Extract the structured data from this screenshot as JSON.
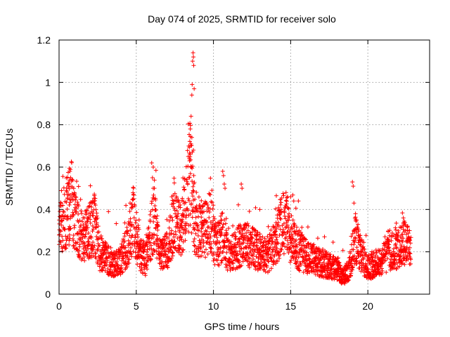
{
  "chart_data": {
    "type": "scatter",
    "title": "Day 074 of 2025, SRMTID for receiver solo",
    "xlabel": "GPS time / hours",
    "ylabel": "SRMTID / TECUs",
    "xlim": [
      0,
      24
    ],
    "ylim": [
      0,
      1.2
    ],
    "xticks": [
      0,
      5,
      10,
      15,
      20
    ],
    "yticks": [
      0,
      0.2,
      0.4,
      0.6,
      0.8,
      1,
      1.2
    ],
    "xtick_labels": [
      "0",
      "5",
      "10",
      "15",
      "20"
    ],
    "ytick_labels": [
      "0",
      "0.2",
      "0.4",
      "0.6",
      "0.8",
      "1",
      "1.2"
    ],
    "grid": true,
    "marker": "+",
    "color": "#ff0000",
    "series": [
      {
        "name": "solo",
        "trend": [
          [
            0.0,
            0.33
          ],
          [
            0.3,
            0.37
          ],
          [
            0.6,
            0.4
          ],
          [
            0.8,
            0.44
          ],
          [
            1.0,
            0.33
          ],
          [
            1.5,
            0.26
          ],
          [
            2.0,
            0.3
          ],
          [
            2.3,
            0.33
          ],
          [
            2.6,
            0.2
          ],
          [
            3.0,
            0.17
          ],
          [
            3.5,
            0.15
          ],
          [
            4.0,
            0.16
          ],
          [
            4.5,
            0.24
          ],
          [
            4.8,
            0.36
          ],
          [
            5.2,
            0.2
          ],
          [
            5.6,
            0.16
          ],
          [
            6.0,
            0.3
          ],
          [
            6.2,
            0.38
          ],
          [
            6.5,
            0.18
          ],
          [
            7.0,
            0.2
          ],
          [
            7.4,
            0.34
          ],
          [
            7.8,
            0.3
          ],
          [
            8.2,
            0.42
          ],
          [
            8.5,
            0.58
          ],
          [
            8.8,
            0.34
          ],
          [
            9.3,
            0.3
          ],
          [
            9.8,
            0.34
          ],
          [
            10.2,
            0.22
          ],
          [
            10.6,
            0.28
          ],
          [
            11.0,
            0.18
          ],
          [
            11.5,
            0.22
          ],
          [
            12.0,
            0.24
          ],
          [
            12.5,
            0.22
          ],
          [
            13.0,
            0.2
          ],
          [
            13.5,
            0.18
          ],
          [
            14.0,
            0.25
          ],
          [
            14.5,
            0.34
          ],
          [
            14.8,
            0.3
          ],
          [
            15.2,
            0.24
          ],
          [
            15.6,
            0.2
          ],
          [
            16.0,
            0.18
          ],
          [
            16.5,
            0.16
          ],
          [
            17.0,
            0.15
          ],
          [
            17.5,
            0.13
          ],
          [
            18.0,
            0.12
          ],
          [
            18.4,
            0.08
          ],
          [
            18.8,
            0.12
          ],
          [
            19.2,
            0.26
          ],
          [
            19.6,
            0.18
          ],
          [
            20.0,
            0.12
          ],
          [
            20.4,
            0.14
          ],
          [
            20.8,
            0.16
          ],
          [
            21.2,
            0.18
          ],
          [
            21.6,
            0.2
          ],
          [
            22.0,
            0.22
          ],
          [
            22.4,
            0.24
          ],
          [
            22.8,
            0.2
          ]
        ],
        "spikes": [
          [
            0.7,
            0.58
          ],
          [
            0.75,
            0.55
          ],
          [
            0.65,
            0.52
          ],
          [
            0.55,
            0.45
          ],
          [
            2.0,
            0.43
          ],
          [
            3.2,
            0.39
          ],
          [
            4.6,
            0.43
          ],
          [
            4.7,
            0.41
          ],
          [
            6.0,
            0.62
          ],
          [
            6.1,
            0.6
          ],
          [
            6.05,
            0.55
          ],
          [
            6.1,
            0.5
          ],
          [
            6.15,
            0.45
          ],
          [
            7.3,
            0.46
          ],
          [
            8.4,
            0.7
          ],
          [
            8.5,
            0.78
          ],
          [
            8.55,
            0.84
          ],
          [
            8.6,
            0.94
          ],
          [
            8.62,
            0.99
          ],
          [
            8.65,
            1.1
          ],
          [
            8.68,
            1.14
          ],
          [
            8.7,
            1.12
          ],
          [
            8.72,
            1.08
          ],
          [
            8.75,
            0.97
          ],
          [
            8.45,
            0.63
          ],
          [
            8.5,
            0.66
          ],
          [
            8.55,
            0.6
          ],
          [
            8.6,
            0.74
          ],
          [
            8.7,
            0.68
          ],
          [
            9.9,
            0.49
          ],
          [
            10.6,
            0.58
          ],
          [
            10.65,
            0.56
          ],
          [
            10.7,
            0.52
          ],
          [
            10.75,
            0.5
          ],
          [
            11.8,
            0.52
          ],
          [
            11.85,
            0.5
          ],
          [
            13.0,
            0.4
          ],
          [
            14.7,
            0.48
          ],
          [
            14.8,
            0.46
          ],
          [
            15.0,
            0.46
          ],
          [
            15.2,
            0.44
          ],
          [
            15.5,
            0.44
          ],
          [
            19.0,
            0.53
          ],
          [
            19.05,
            0.51
          ],
          [
            19.1,
            0.43
          ],
          [
            19.2,
            0.38
          ],
          [
            22.3,
            0.36
          ],
          [
            22.7,
            0.3
          ]
        ]
      }
    ]
  }
}
